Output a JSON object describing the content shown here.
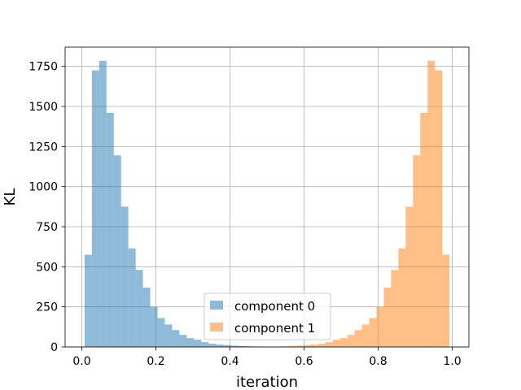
{
  "chart_data": {
    "type": "bar",
    "title": "",
    "xlabel": "iteration",
    "ylabel": "KL",
    "xlim": [
      -0.045,
      1.045
    ],
    "ylim": [
      0,
      1870
    ],
    "xticks": [
      "0.0",
      "0.2",
      "0.4",
      "0.6",
      "0.8",
      "1.0"
    ],
    "xtick_values": [
      0.0,
      0.2,
      0.4,
      0.6,
      0.8,
      1.0
    ],
    "yticks": [
      "0",
      "250",
      "500",
      "750",
      "1000",
      "1250",
      "1500",
      "1750"
    ],
    "ytick_values": [
      0,
      250,
      500,
      750,
      1000,
      1250,
      1500,
      1750
    ],
    "grid": true,
    "legend_position": "lower-center",
    "bin_edges": [
      0.0075,
      0.0272,
      0.0469,
      0.0666,
      0.0863,
      0.106,
      0.1257,
      0.1454,
      0.1651,
      0.1848,
      0.2045,
      0.2242,
      0.2439,
      0.2636,
      0.2833,
      0.303,
      0.3227,
      0.3424,
      0.3621,
      0.3818,
      0.4015,
      0.4212,
      0.4409,
      0.4606,
      0.4803,
      0.5,
      0.5197,
      0.5394,
      0.5591,
      0.5788,
      0.5985,
      0.6182,
      0.6379,
      0.6576,
      0.6773,
      0.697,
      0.7167,
      0.7364,
      0.7561,
      0.7758,
      0.7955,
      0.8152,
      0.8349,
      0.8546,
      0.8743,
      0.894,
      0.9137,
      0.9334,
      0.9531,
      0.9728,
      0.9925
    ],
    "series": [
      {
        "name": "component 0",
        "color": "#1f77b4",
        "opacity": 0.5,
        "values": [
          575,
          1725,
          1785,
          1460,
          1195,
          875,
          615,
          480,
          370,
          250,
          180,
          140,
          105,
          75,
          55,
          45,
          30,
          20,
          15,
          12,
          8,
          6,
          4,
          3,
          2,
          2,
          1,
          1,
          1,
          0,
          0,
          0,
          0,
          0,
          0,
          0,
          0,
          0,
          0,
          0,
          0,
          0,
          0,
          0,
          0,
          0,
          0,
          0,
          0,
          0
        ]
      },
      {
        "name": "component 1",
        "color": "#ff7f0e",
        "opacity": 0.5,
        "values": [
          0,
          0,
          0,
          0,
          0,
          0,
          0,
          0,
          0,
          0,
          0,
          0,
          0,
          0,
          0,
          0,
          0,
          0,
          0,
          0,
          0,
          1,
          1,
          1,
          2,
          2,
          3,
          4,
          6,
          8,
          12,
          15,
          20,
          30,
          45,
          55,
          75,
          105,
          140,
          180,
          250,
          370,
          480,
          615,
          875,
          1195,
          1460,
          1785,
          1725,
          575
        ]
      }
    ]
  }
}
